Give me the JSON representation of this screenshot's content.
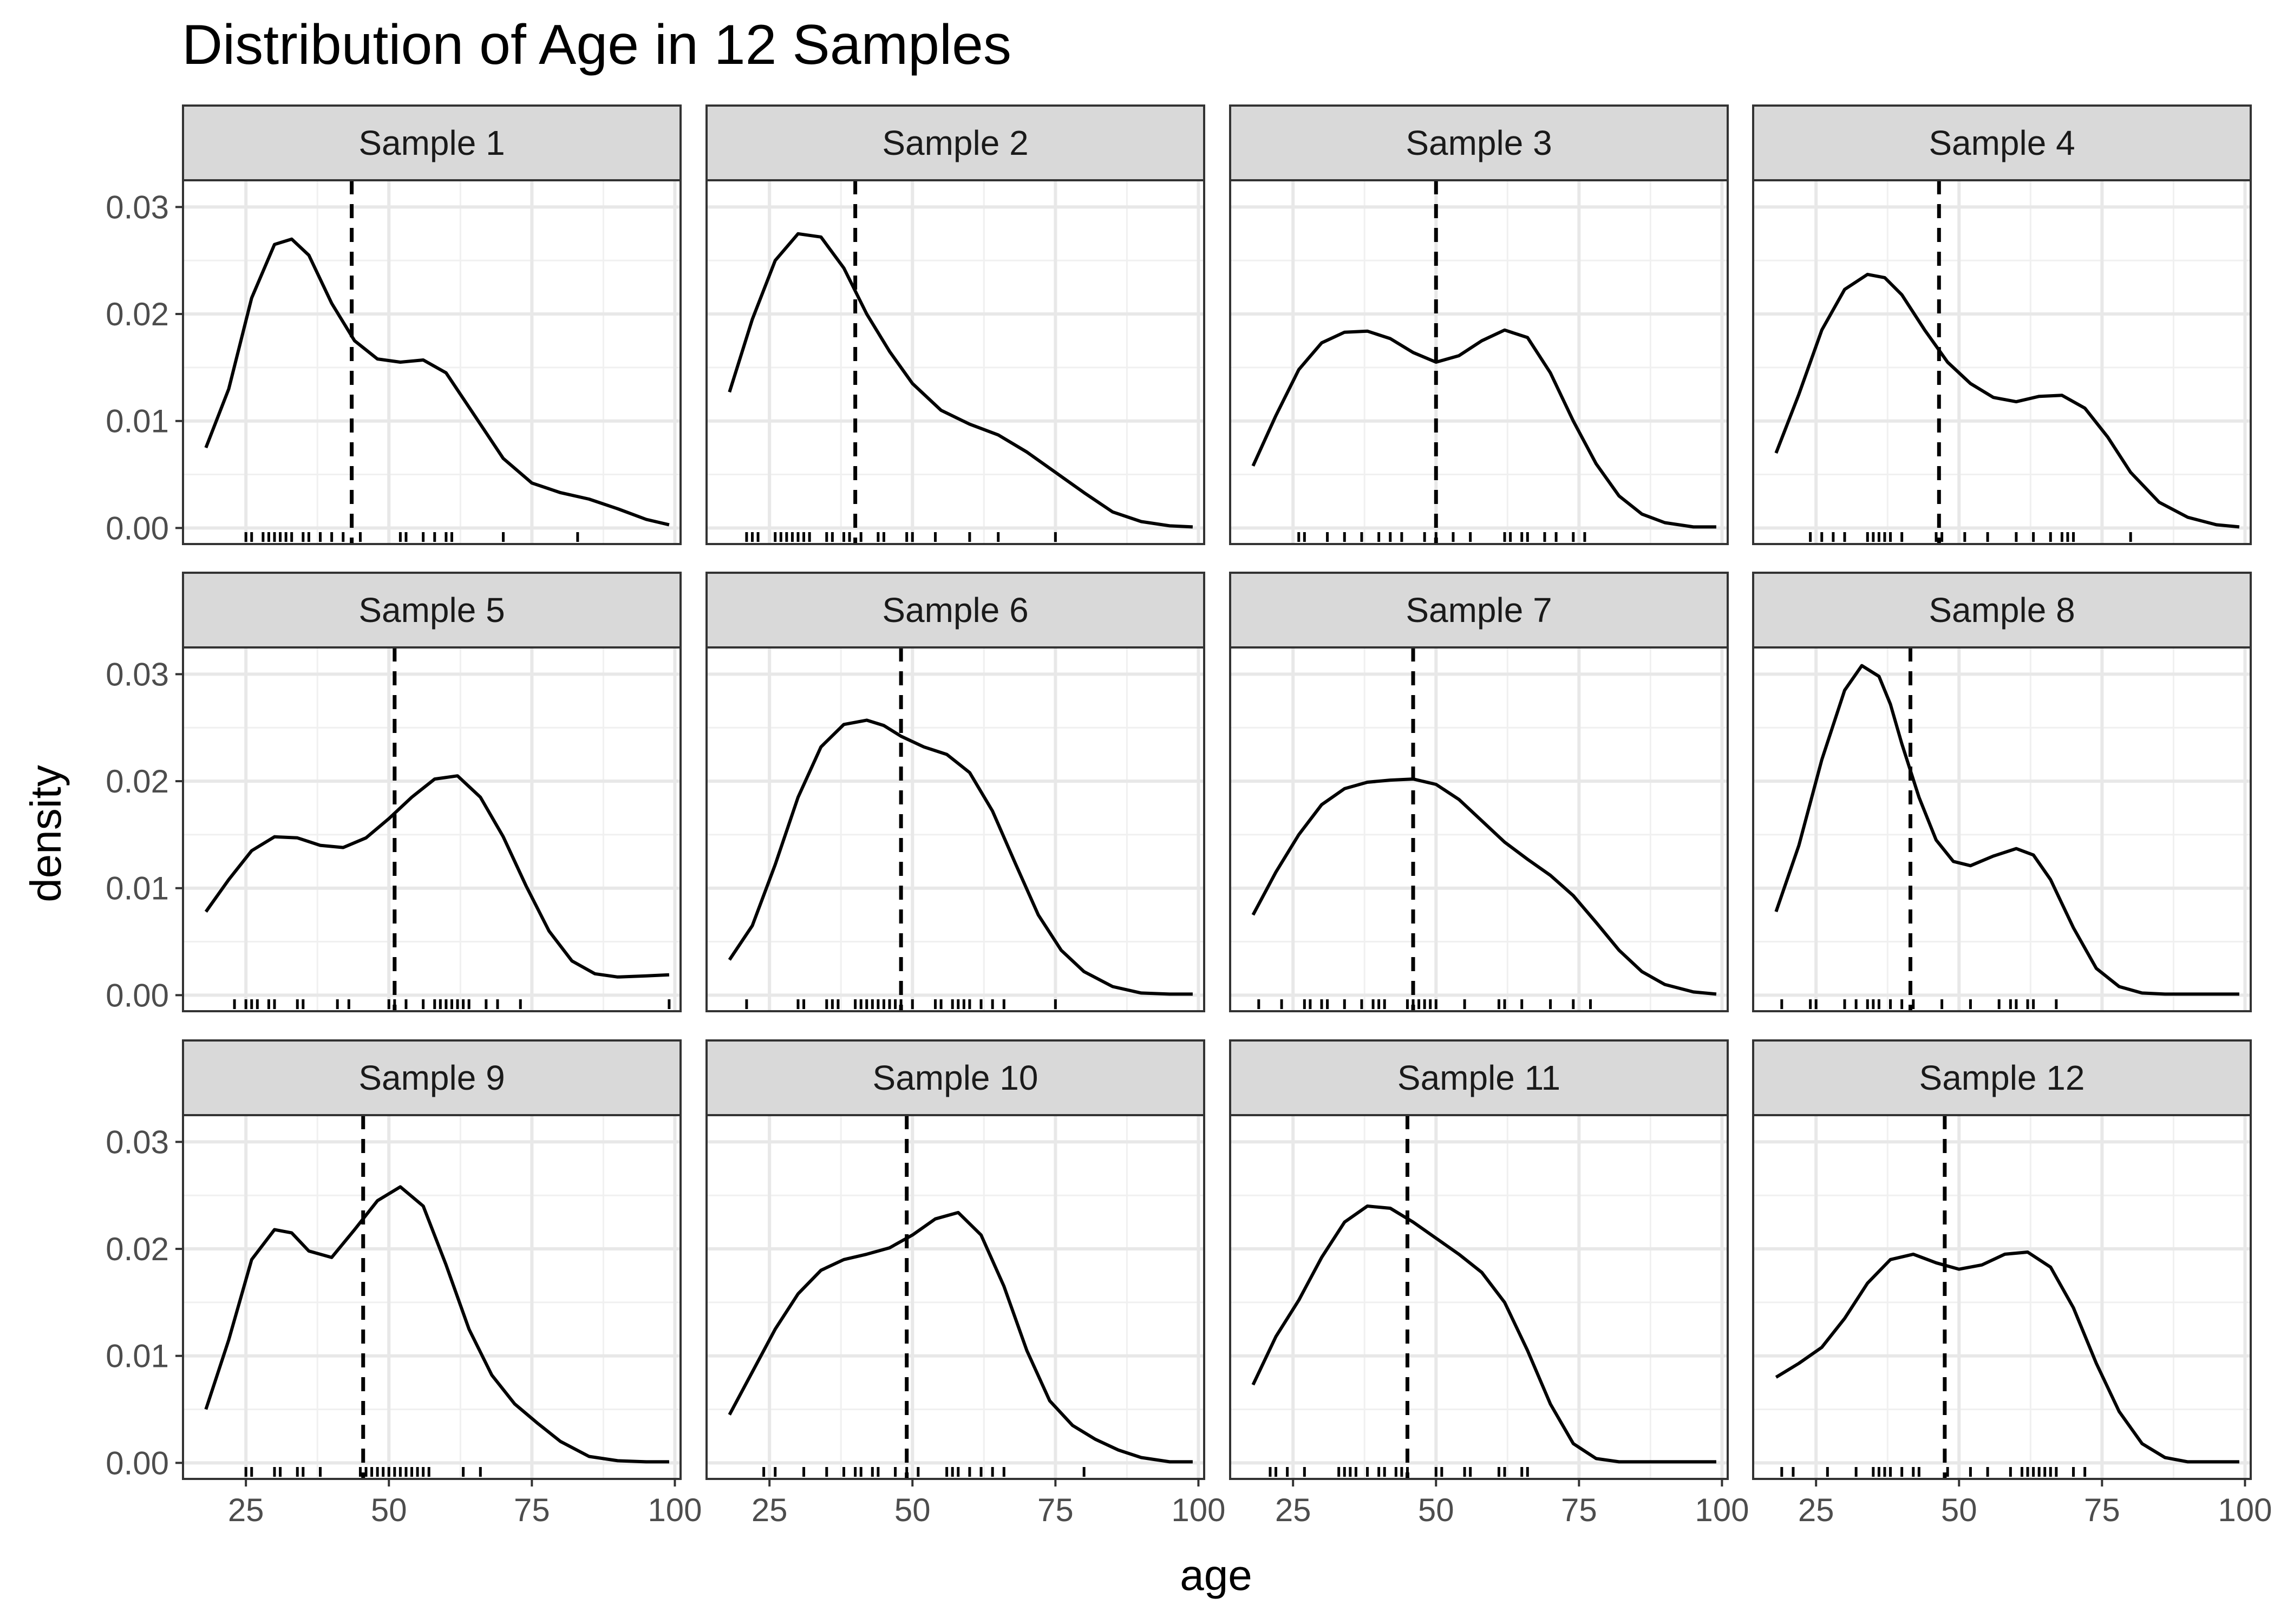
{
  "chart_data": {
    "type": "density",
    "title": "Distribution of Age in 12 Samples",
    "xlabel": "age",
    "ylabel": "density",
    "xlim": [
      14,
      101
    ],
    "ylim": [
      -0.0015,
      0.0325
    ],
    "x_ticks": [
      25,
      50,
      75,
      100
    ],
    "x_tick_labels": [
      "25",
      "50",
      "75",
      "100"
    ],
    "y_ticks": [
      0.0,
      0.01,
      0.02,
      0.03
    ],
    "y_tick_labels": [
      "0.00",
      "0.01",
      "0.02",
      "0.03"
    ],
    "grid": true,
    "layout": {
      "rows": 3,
      "cols": 4
    },
    "facets": [
      {
        "label": "Sample  1",
        "mean": 43.5,
        "density": {
          "x": [
            18,
            22,
            26,
            30,
            33,
            36,
            40,
            44,
            48,
            52,
            56,
            60,
            65,
            70,
            75,
            80,
            85,
            90,
            95,
            99
          ],
          "y": [
            0.0075,
            0.013,
            0.0215,
            0.0265,
            0.027,
            0.0255,
            0.021,
            0.0175,
            0.0158,
            0.0155,
            0.0157,
            0.0145,
            0.0105,
            0.0065,
            0.0042,
            0.0033,
            0.0027,
            0.0018,
            0.0008,
            0.0003
          ]
        },
        "rug": [
          25,
          26,
          28,
          29,
          30,
          31,
          32,
          33,
          35,
          36,
          38,
          40,
          42,
          45,
          52,
          53,
          56,
          58,
          60,
          61,
          70,
          83
        ]
      },
      {
        "label": "Sample  2",
        "mean": 40,
        "density": {
          "x": [
            18,
            22,
            26,
            30,
            34,
            38,
            42,
            46,
            50,
            55,
            60,
            65,
            70,
            75,
            80,
            85,
            90,
            95,
            99
          ],
          "y": [
            0.0127,
            0.0195,
            0.025,
            0.0275,
            0.0272,
            0.0243,
            0.02,
            0.0165,
            0.0135,
            0.011,
            0.0097,
            0.0087,
            0.0071,
            0.0052,
            0.0033,
            0.0015,
            0.0006,
            0.0002,
            0.0001
          ]
        },
        "rug": [
          21,
          22,
          23,
          26,
          27,
          28,
          29,
          30,
          31,
          32,
          35,
          36,
          38,
          39,
          41,
          44,
          45,
          49,
          50,
          54,
          60,
          65,
          75
        ]
      },
      {
        "label": "Sample  3",
        "mean": 50,
        "density": {
          "x": [
            18,
            22,
            26,
            30,
            34,
            38,
            42,
            46,
            50,
            54,
            58,
            62,
            66,
            70,
            74,
            78,
            82,
            86,
            90,
            95,
            99
          ],
          "y": [
            0.0058,
            0.0105,
            0.0148,
            0.0173,
            0.0183,
            0.0184,
            0.0177,
            0.0164,
            0.0155,
            0.0161,
            0.0175,
            0.0185,
            0.0178,
            0.0145,
            0.01,
            0.006,
            0.003,
            0.0013,
            0.0005,
            0.0001,
            0.0001
          ]
        },
        "rug": [
          26,
          27,
          31,
          34,
          37,
          40,
          42,
          44,
          48,
          50,
          53,
          56,
          62,
          63,
          65,
          66,
          69,
          71,
          74,
          76
        ]
      },
      {
        "label": "Sample  4",
        "mean": 46.5,
        "density": {
          "x": [
            18,
            22,
            26,
            30,
            34,
            37,
            40,
            44,
            48,
            52,
            56,
            60,
            64,
            68,
            72,
            76,
            80,
            85,
            90,
            95,
            99
          ],
          "y": [
            0.007,
            0.0125,
            0.0185,
            0.0223,
            0.0237,
            0.0234,
            0.0218,
            0.0185,
            0.0155,
            0.0135,
            0.0122,
            0.0118,
            0.0123,
            0.0124,
            0.0112,
            0.0085,
            0.0052,
            0.0024,
            0.001,
            0.0003,
            0.0001
          ]
        },
        "rug": [
          24,
          26,
          28,
          30,
          34,
          35,
          36,
          37,
          38,
          40,
          46,
          47,
          51,
          55,
          60,
          63,
          66,
          68,
          69,
          70,
          80
        ]
      },
      {
        "label": "Sample  5",
        "mean": 51,
        "density": {
          "x": [
            18,
            22,
            26,
            30,
            34,
            38,
            42,
            46,
            50,
            54,
            58,
            62,
            66,
            70,
            74,
            78,
            82,
            86,
            90,
            95,
            99
          ],
          "y": [
            0.0078,
            0.0108,
            0.0135,
            0.0148,
            0.0147,
            0.014,
            0.0138,
            0.0147,
            0.0165,
            0.0185,
            0.0202,
            0.0205,
            0.0185,
            0.0148,
            0.0102,
            0.006,
            0.0032,
            0.002,
            0.0017,
            0.0018,
            0.0019
          ]
        },
        "rug": [
          23,
          25,
          26,
          27,
          29,
          30,
          34,
          35,
          41,
          43,
          50,
          51,
          53,
          56,
          58,
          59,
          60,
          61,
          62,
          63,
          64,
          67,
          69,
          73,
          99
        ]
      },
      {
        "label": "Sample  6",
        "mean": 48,
        "density": {
          "x": [
            18,
            22,
            26,
            30,
            34,
            38,
            42,
            45,
            48,
            52,
            56,
            60,
            64,
            68,
            72,
            76,
            80,
            85,
            90,
            95,
            99
          ],
          "y": [
            0.0033,
            0.0065,
            0.0122,
            0.0185,
            0.0232,
            0.0253,
            0.0257,
            0.0252,
            0.0242,
            0.0232,
            0.0225,
            0.0208,
            0.0172,
            0.0123,
            0.0075,
            0.0042,
            0.0022,
            0.0008,
            0.0002,
            0.0001,
            0.0001
          ]
        },
        "rug": [
          21,
          30,
          31,
          35,
          36,
          37,
          40,
          41,
          42,
          43,
          44,
          45,
          46,
          47,
          48,
          50,
          54,
          55,
          57,
          58,
          59,
          60,
          62,
          64,
          66,
          75
        ]
      },
      {
        "label": "Sample  7",
        "mean": 46,
        "density": {
          "x": [
            18,
            22,
            26,
            30,
            34,
            38,
            42,
            46,
            50,
            54,
            58,
            62,
            66,
            70,
            74,
            78,
            82,
            86,
            90,
            95,
            99
          ],
          "y": [
            0.0075,
            0.0115,
            0.015,
            0.0178,
            0.0193,
            0.0199,
            0.0201,
            0.0202,
            0.0197,
            0.0183,
            0.0163,
            0.0143,
            0.0127,
            0.0112,
            0.0093,
            0.0068,
            0.0042,
            0.0022,
            0.001,
            0.0003,
            0.0001
          ]
        },
        "rug": [
          19,
          23,
          27,
          28,
          30,
          31,
          34,
          37,
          39,
          40,
          41,
          45,
          46,
          47,
          48,
          49,
          50,
          55,
          61,
          62,
          65,
          70,
          74,
          77
        ]
      },
      {
        "label": "Sample  8",
        "mean": 41.5,
        "density": {
          "x": [
            18,
            22,
            26,
            30,
            33,
            36,
            38,
            40,
            43,
            46,
            49,
            52,
            56,
            60,
            63,
            66,
            70,
            74,
            78,
            82,
            86,
            90,
            95,
            99
          ],
          "y": [
            0.0078,
            0.014,
            0.022,
            0.0285,
            0.0308,
            0.0298,
            0.0272,
            0.0235,
            0.0185,
            0.0145,
            0.0125,
            0.0121,
            0.013,
            0.0137,
            0.0131,
            0.0108,
            0.0063,
            0.0025,
            0.0008,
            0.0002,
            0.0001,
            0.0001,
            0.0001,
            0.0001
          ]
        },
        "rug": [
          19,
          24,
          25,
          30,
          32,
          34,
          35,
          36,
          38,
          40,
          42,
          47,
          52,
          57,
          59,
          60,
          62,
          63,
          67
        ]
      },
      {
        "label": "Sample  9",
        "mean": 45.5,
        "density": {
          "x": [
            18,
            22,
            26,
            30,
            33,
            36,
            40,
            44,
            48,
            52,
            56,
            60,
            64,
            68,
            72,
            76,
            80,
            85,
            90,
            95,
            99
          ],
          "y": [
            0.005,
            0.0115,
            0.019,
            0.0218,
            0.0215,
            0.0198,
            0.0192,
            0.0218,
            0.0245,
            0.0258,
            0.024,
            0.0185,
            0.0125,
            0.0082,
            0.0055,
            0.0037,
            0.002,
            0.0006,
            0.0002,
            0.0001,
            0.0001
          ]
        },
        "rug": [
          25,
          26,
          30,
          31,
          34,
          35,
          38,
          45,
          46,
          47,
          48,
          49,
          50,
          51,
          52,
          53,
          54,
          55,
          56,
          57,
          63,
          66
        ]
      },
      {
        "label": "Sample  10",
        "mean": 49,
        "density": {
          "x": [
            18,
            22,
            26,
            30,
            34,
            38,
            42,
            46,
            50,
            54,
            58,
            62,
            66,
            70,
            74,
            78,
            82,
            86,
            90,
            95,
            99
          ],
          "y": [
            0.0045,
            0.0085,
            0.0125,
            0.0158,
            0.018,
            0.019,
            0.0195,
            0.0201,
            0.0213,
            0.0228,
            0.0234,
            0.0213,
            0.0165,
            0.0105,
            0.0058,
            0.0035,
            0.0022,
            0.0012,
            0.0005,
            0.0001,
            0.0001
          ]
        },
        "rug": [
          24,
          26,
          31,
          35,
          38,
          40,
          41,
          43,
          44,
          47,
          49,
          51,
          56,
          57,
          58,
          60,
          62,
          64,
          66,
          80
        ]
      },
      {
        "label": "Sample  11",
        "mean": 45,
        "density": {
          "x": [
            18,
            22,
            26,
            30,
            34,
            38,
            42,
            46,
            50,
            54,
            58,
            62,
            66,
            70,
            74,
            78,
            82,
            86,
            90,
            95,
            99
          ],
          "y": [
            0.0073,
            0.0118,
            0.0152,
            0.0192,
            0.0225,
            0.024,
            0.0238,
            0.0225,
            0.021,
            0.0195,
            0.0178,
            0.015,
            0.0105,
            0.0055,
            0.0018,
            0.0004,
            0.0001,
            0.0001,
            0.0001,
            0.0001,
            0.0001
          ]
        },
        "rug": [
          21,
          22,
          24,
          27,
          33,
          34,
          35,
          36,
          38,
          40,
          41,
          43,
          44,
          45,
          50,
          51,
          55,
          56,
          61,
          62,
          65,
          66
        ]
      },
      {
        "label": "Sample  12",
        "mean": 47.5,
        "density": {
          "x": [
            18,
            22,
            26,
            30,
            34,
            38,
            42,
            46,
            50,
            54,
            58,
            62,
            66,
            70,
            74,
            78,
            82,
            86,
            90,
            95,
            99
          ],
          "y": [
            0.008,
            0.0093,
            0.0108,
            0.0135,
            0.0168,
            0.019,
            0.0195,
            0.0187,
            0.0181,
            0.0185,
            0.0195,
            0.0197,
            0.0183,
            0.0145,
            0.0093,
            0.0048,
            0.0018,
            0.0005,
            0.0001,
            0.0001,
            0.0001
          ]
        },
        "rug": [
          19,
          21,
          27,
          32,
          35,
          36,
          37,
          38,
          40,
          42,
          43,
          48,
          52,
          55,
          59,
          61,
          62,
          63,
          64,
          65,
          66,
          67,
          70,
          72
        ]
      }
    ]
  }
}
